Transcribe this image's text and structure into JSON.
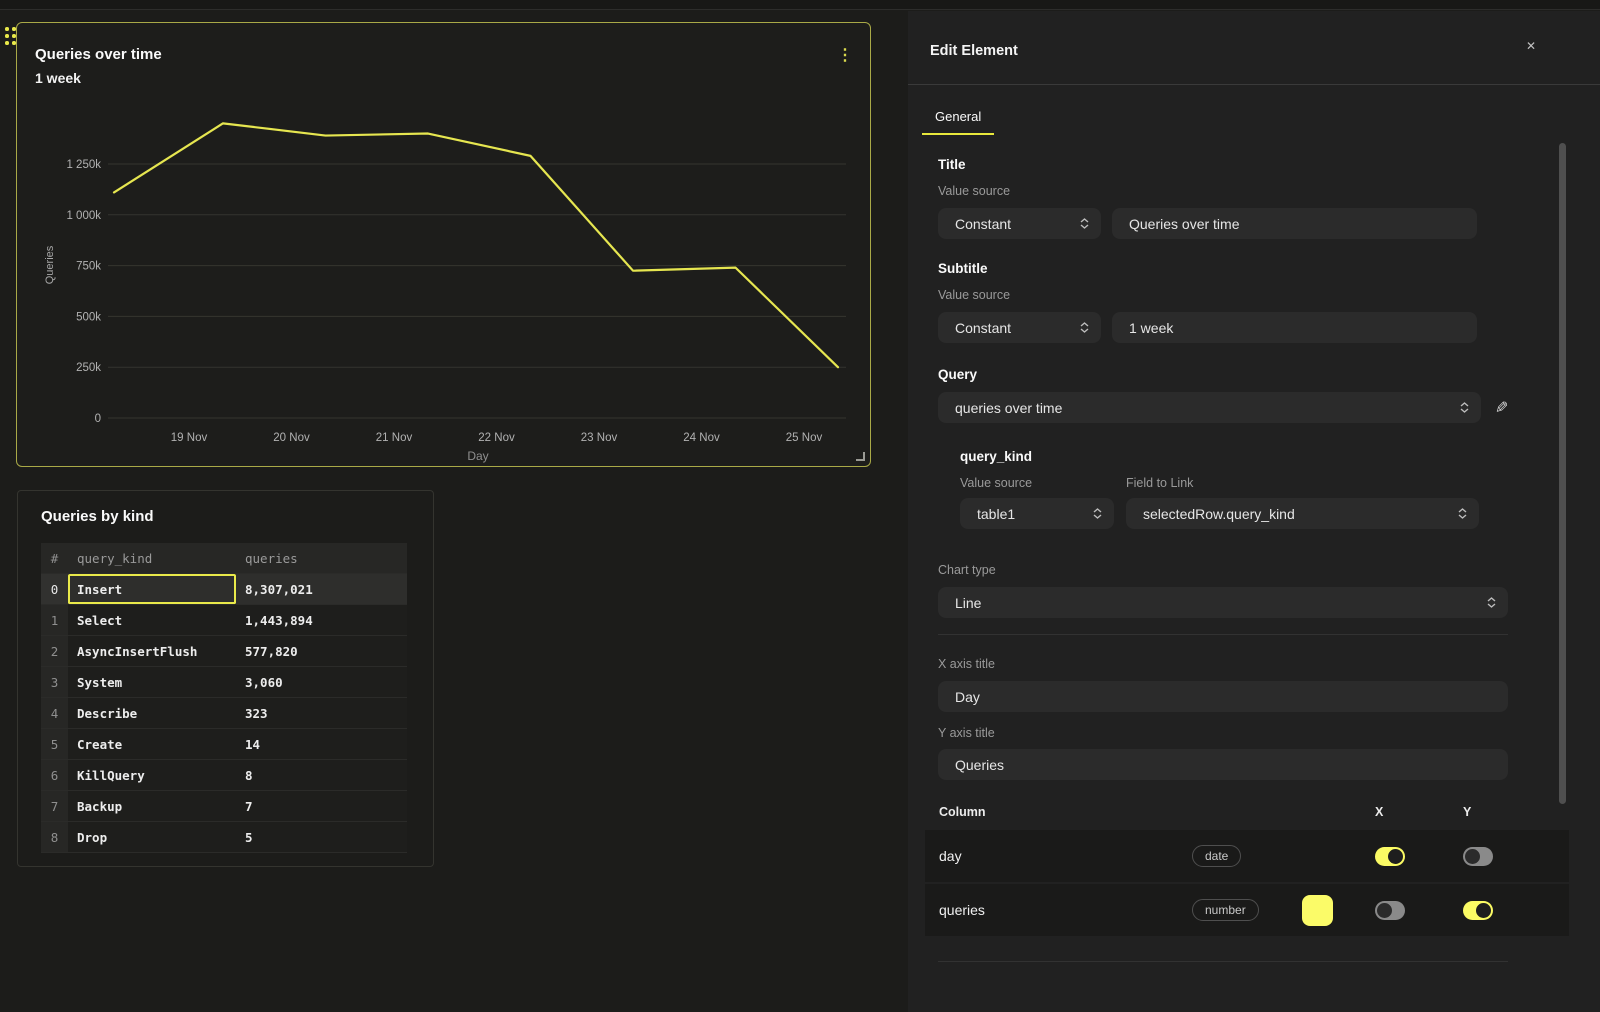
{
  "colors": {
    "accent": "#e9e94a",
    "panel_border": "#a9a947",
    "line": "#e6e650",
    "toggle_on": "#fbfb64",
    "swatch": "#fbfb68",
    "canvas_bg": "#1c1c1a",
    "editor_bg": "#212121"
  },
  "canvas": {
    "chart_panel": {
      "title": "Queries over time",
      "subtitle": "1 week"
    },
    "table_panel": {
      "title": "Queries by kind",
      "columns": [
        "#",
        "query_kind",
        "queries"
      ],
      "rows": [
        {
          "idx": "0",
          "query_kind": "Insert",
          "queries": "8,307,021",
          "selected": true
        },
        {
          "idx": "1",
          "query_kind": "Select",
          "queries": "1,443,894",
          "selected": false
        },
        {
          "idx": "2",
          "query_kind": "AsyncInsertFlush",
          "queries": "577,820",
          "selected": false
        },
        {
          "idx": "3",
          "query_kind": "System",
          "queries": "3,060",
          "selected": false
        },
        {
          "idx": "4",
          "query_kind": "Describe",
          "queries": "323",
          "selected": false
        },
        {
          "idx": "5",
          "query_kind": "Create",
          "queries": "14",
          "selected": false
        },
        {
          "idx": "6",
          "query_kind": "KillQuery",
          "queries": "8",
          "selected": false
        },
        {
          "idx": "7",
          "query_kind": "Backup",
          "queries": "7",
          "selected": false
        },
        {
          "idx": "8",
          "query_kind": "Drop",
          "queries": "5",
          "selected": false
        }
      ]
    }
  },
  "chart_data": {
    "type": "line",
    "title": "Queries over time",
    "subtitle": "1 week",
    "xlabel": "Day",
    "ylabel": "Queries",
    "x_tick_labels": [
      "19 Nov",
      "20 Nov",
      "21 Nov",
      "22 Nov",
      "23 Nov",
      "24 Nov",
      "25 Nov"
    ],
    "y_tick_labels": [
      "0",
      "250k",
      "500k",
      "750k",
      "1 000k",
      "1 250k"
    ],
    "y_tick_values": [
      0,
      250000,
      500000,
      750000,
      1000000,
      1250000
    ],
    "ylim": [
      0,
      1500000
    ],
    "grid": "horizontal",
    "legend": "none",
    "series": [
      {
        "name": "queries",
        "color": "#e6e650",
        "points": [
          {
            "x": "18 Nov",
            "y": 1110000
          },
          {
            "x": "19 Nov",
            "y": 1450000
          },
          {
            "x": "20 Nov",
            "y": 1390000
          },
          {
            "x": "21 Nov",
            "y": 1400000
          },
          {
            "x": "22 Nov",
            "y": 1290000
          },
          {
            "x": "23 Nov",
            "y": 725000
          },
          {
            "x": "24 Nov",
            "y": 740000
          },
          {
            "x": "25 Nov",
            "y": 250000
          }
        ]
      }
    ]
  },
  "editor": {
    "header": {
      "title": "Edit Element",
      "close_icon": "✕"
    },
    "tabs": [
      {
        "label": "General",
        "active": true
      }
    ],
    "title_section": {
      "label": "Title",
      "value_source_label": "Value source",
      "source": "Constant",
      "value": "Queries over time"
    },
    "subtitle_section": {
      "label": "Subtitle",
      "value_source_label": "Value source",
      "source": "Constant",
      "value": "1 week"
    },
    "query_section": {
      "label": "Query",
      "selected": "queries over time",
      "edit_icon": "✎"
    },
    "query_kind_section": {
      "label": "query_kind",
      "value_source_label": "Value source",
      "field_to_link_label": "Field to Link",
      "source": "table1",
      "field": "selectedRow.query_kind"
    },
    "chart_type": {
      "label": "Chart type",
      "value": "Line"
    },
    "x_axis": {
      "label": "X axis title",
      "value": "Day"
    },
    "y_axis": {
      "label": "Y axis title",
      "value": "Queries"
    },
    "columns_table": {
      "headers": [
        "Column",
        "X",
        "Y"
      ],
      "rows": [
        {
          "name": "day",
          "type": "date",
          "has_swatch": false,
          "swatch_color": "",
          "x_on": true,
          "y_on": false
        },
        {
          "name": "queries",
          "type": "number",
          "has_swatch": true,
          "swatch_color": "#fbfb68",
          "x_on": false,
          "y_on": true
        }
      ]
    }
  }
}
